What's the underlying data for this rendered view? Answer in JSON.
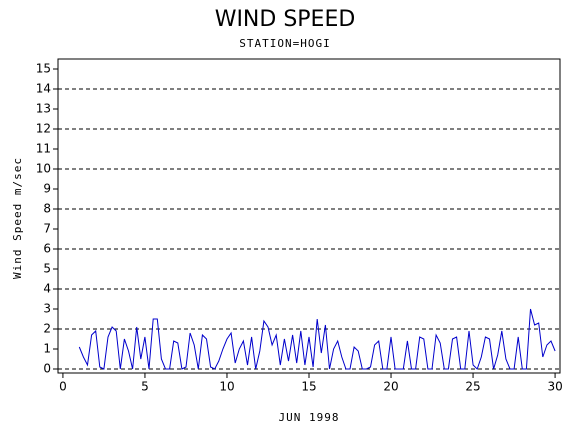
{
  "chart_data": {
    "type": "line",
    "title": "WIND SPEED",
    "subtitle": "STATION=HOGI",
    "xlabel": "JUN 1998",
    "ylabel": "Wind Speed m/sec",
    "xlim": [
      -0.3,
      30.3
    ],
    "xticks": [
      0,
      5,
      10,
      15,
      20,
      25,
      30
    ],
    "ylim": [
      -0.2,
      15.5
    ],
    "yticks": [
      0,
      1,
      2,
      3,
      4,
      5,
      6,
      7,
      8,
      9,
      10,
      11,
      12,
      13,
      14,
      15
    ],
    "grid_step": 2,
    "series": [
      {
        "color": "#0000cc",
        "x": [
          1,
          1.25,
          1.5,
          1.75,
          2,
          2.25,
          2.5,
          2.75,
          3,
          3.25,
          3.5,
          3.75,
          4,
          4.25,
          4.5,
          4.75,
          5,
          5.25,
          5.5,
          5.75,
          6,
          6.25,
          6.5,
          6.75,
          7,
          7.25,
          7.5,
          7.75,
          8,
          8.25,
          8.5,
          8.75,
          9,
          9.25,
          9.5,
          9.75,
          10,
          10.25,
          10.5,
          10.75,
          11,
          11.25,
          11.5,
          11.75,
          12,
          12.25,
          12.5,
          12.75,
          13,
          13.25,
          13.5,
          13.75,
          14,
          14.25,
          14.5,
          14.75,
          15,
          15.25,
          15.5,
          15.75,
          16,
          16.25,
          16.5,
          16.75,
          17,
          17.25,
          17.5,
          17.75,
          18,
          18.25,
          18.5,
          18.75,
          19,
          19.25,
          19.5,
          19.75,
          20,
          20.25,
          20.5,
          20.75,
          21,
          21.25,
          21.5,
          21.75,
          22,
          22.25,
          22.5,
          22.75,
          23,
          23.25,
          23.5,
          23.75,
          24,
          24.25,
          24.5,
          24.75,
          25,
          25.25,
          25.5,
          25.75,
          26,
          26.25,
          26.5,
          26.75,
          27,
          27.25,
          27.5,
          27.75,
          28,
          28.25,
          28.5,
          28.75,
          29,
          29.25,
          29.5,
          29.75,
          30
        ],
        "values": [
          1.1,
          0.6,
          0.2,
          1.7,
          1.9,
          0.1,
          0.0,
          1.6,
          2.1,
          1.9,
          0.0,
          1.5,
          0.9,
          0.0,
          2.1,
          0.5,
          1.6,
          0.0,
          2.5,
          2.5,
          0.5,
          0.0,
          0.0,
          1.4,
          1.3,
          0.0,
          0.1,
          1.8,
          1.2,
          0.0,
          1.7,
          1.5,
          0.1,
          0.0,
          0.4,
          1.0,
          1.5,
          1.8,
          0.3,
          1.0,
          1.4,
          0.2,
          1.6,
          0.0,
          0.9,
          2.4,
          2.1,
          1.2,
          1.7,
          0.2,
          1.5,
          0.4,
          1.7,
          0.3,
          1.9,
          0.2,
          1.6,
          0.1,
          2.5,
          0.8,
          2.2,
          0.0,
          1.0,
          1.4,
          0.6,
          0.0,
          0.0,
          1.1,
          0.9,
          0.0,
          0.0,
          0.1,
          1.2,
          1.4,
          0.0,
          0.0,
          1.6,
          0.0,
          0.0,
          0.0,
          1.4,
          0.0,
          0.0,
          1.6,
          1.5,
          0.0,
          0.0,
          1.7,
          1.3,
          0.0,
          0.0,
          1.5,
          1.6,
          0.0,
          0.0,
          1.9,
          0.2,
          0.0,
          0.6,
          1.6,
          1.5,
          0.0,
          0.7,
          1.9,
          0.5,
          0.0,
          0.0,
          1.6,
          0.0,
          0.0,
          3.0,
          2.2,
          2.3,
          0.6,
          1.2,
          1.4,
          0.9
        ]
      }
    ]
  }
}
